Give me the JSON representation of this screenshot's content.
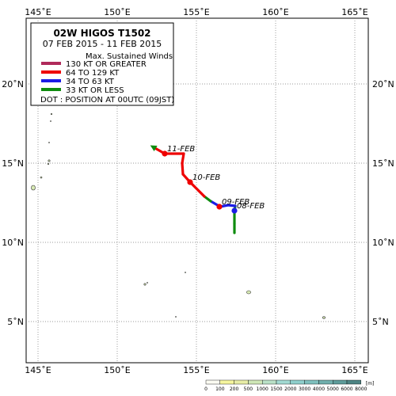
{
  "title": "02W  HIGOS  T1502",
  "period": "07 FEB 2015 - 11 FEB 2015",
  "legend": {
    "heading": "Max. Sustained Winds",
    "items": [
      {
        "label": "130 KT OR GREATER",
        "color": "#b02a5a"
      },
      {
        "label": "64 TO 129 KT",
        "color": "#ee0000"
      },
      {
        "label": "34 TO 63 KT",
        "color": "#1c1ce6"
      },
      {
        "label": "33 KT OR LESS",
        "color": "#0e8c0e"
      }
    ],
    "dot_note": "DOT : POSITION AT 00UTC (09JST)"
  },
  "axes": {
    "lon_labels": [
      "145˚E",
      "150˚E",
      "155˚E",
      "160˚E",
      "165˚E"
    ],
    "lat_labels": [
      "5˚N",
      "10˚N",
      "15˚N",
      "20˚N"
    ]
  },
  "track": [
    {
      "lon": 157.4,
      "lat": 10.6,
      "cat": "le33"
    },
    {
      "lon": 157.4,
      "lat": 11.2,
      "cat": "le33"
    },
    {
      "lon": 157.4,
      "lat": 11.9,
      "cat": "le33"
    },
    {
      "lon": 157.45,
      "lat": 12.3,
      "cat": "34to63"
    },
    {
      "lon": 157.0,
      "lat": 12.35,
      "cat": "34to63"
    },
    {
      "lon": 156.5,
      "lat": 12.25,
      "cat": "34to63"
    },
    {
      "lon": 155.9,
      "lat": 12.6,
      "cat": "le33"
    },
    {
      "lon": 155.5,
      "lat": 12.9,
      "cat": "64to129"
    },
    {
      "lon": 154.6,
      "lat": 13.8,
      "cat": "64to129"
    },
    {
      "lon": 154.15,
      "lat": 14.3,
      "cat": "64to129"
    },
    {
      "lon": 154.1,
      "lat": 15.0,
      "cat": "64to129"
    },
    {
      "lon": 154.2,
      "lat": 15.6,
      "cat": "64to129"
    },
    {
      "lon": 153.0,
      "lat": 15.6,
      "cat": "64to129"
    },
    {
      "lon": 152.3,
      "lat": 16.0,
      "cat": "le33"
    }
  ],
  "daily_positions": [
    {
      "lon": 157.4,
      "lat": 12.0,
      "label": "08-FEB",
      "cat": "34to63"
    },
    {
      "lon": 156.45,
      "lat": 12.25,
      "label": "09-FEB",
      "cat": "64to129"
    },
    {
      "lon": 154.6,
      "lat": 13.8,
      "label": "10-FEB",
      "cat": "64to129"
    },
    {
      "lon": 153.0,
      "lat": 15.6,
      "label": "11-FEB",
      "cat": "64to129"
    }
  ],
  "elevation_scale": {
    "ticks": [
      "0",
      "100",
      "200",
      "500",
      "1000",
      "1500",
      "2000",
      "3000",
      "4000",
      "5000",
      "6000",
      "8000"
    ],
    "unit": "[m]",
    "colors": [
      "#fbfbf2",
      "#f5f59e",
      "#e8eda7",
      "#cfe7b7",
      "#b9e1c7",
      "#a2dad2",
      "#8fcfcc",
      "#7fc0bd",
      "#70afad",
      "#5e9c9a",
      "#4d8584"
    ]
  }
}
